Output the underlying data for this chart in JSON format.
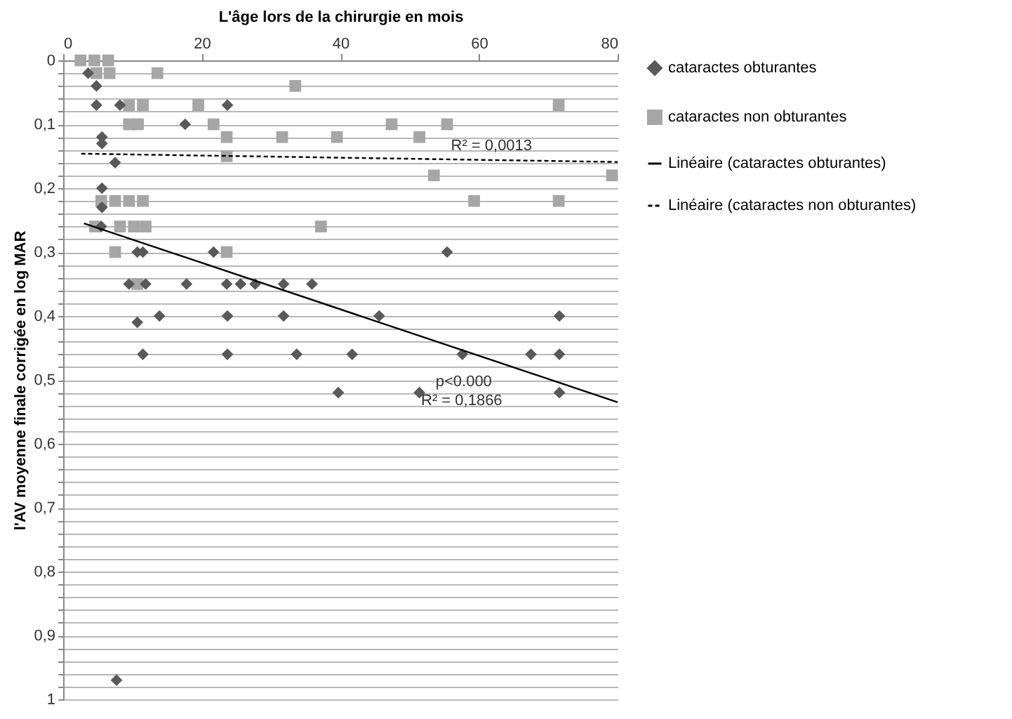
{
  "chart_data": {
    "type": "scatter",
    "xlabel": "L'âge lors de la chirurgie en mois",
    "ylabel": "l'AV moyenne finale corrigée en log MAR",
    "xlim": [
      0,
      80
    ],
    "xticks": [
      0,
      20,
      40,
      60,
      80
    ],
    "ylim": [
      1,
      0
    ],
    "yticks": [
      0,
      {
        "value": 0.02,
        "label": null
      },
      {
        "value": 0.04,
        "label": null
      },
      {
        "value": 0.06,
        "label": null
      },
      {
        "value": 0.08,
        "label": null
      },
      {
        "value": 0.1,
        "label": "0,1"
      },
      {
        "value": 0.12,
        "label": null
      },
      {
        "value": 0.14,
        "label": null
      },
      {
        "value": 0.16,
        "label": null
      },
      {
        "value": 0.18,
        "label": null
      },
      {
        "value": 0.2,
        "label": "0,2"
      },
      {
        "value": 0.22,
        "label": null
      },
      {
        "value": 0.24,
        "label": null
      },
      {
        "value": 0.26,
        "label": null
      },
      {
        "value": 0.28,
        "label": null
      },
      {
        "value": 0.3,
        "label": "0,3"
      },
      {
        "value": 0.32,
        "label": null
      },
      {
        "value": 0.34,
        "label": null
      },
      {
        "value": 0.36,
        "label": null
      },
      {
        "value": 0.38,
        "label": null
      },
      {
        "value": 0.4,
        "label": "0,4"
      },
      {
        "value": 0.42,
        "label": null
      },
      {
        "value": 0.44,
        "label": null
      },
      {
        "value": 0.46,
        "label": null
      },
      {
        "value": 0.48,
        "label": null
      },
      {
        "value": 0.5,
        "label": "0,5"
      },
      {
        "value": 0.52,
        "label": null
      },
      {
        "value": 0.54,
        "label": null
      },
      {
        "value": 0.56,
        "label": null
      },
      {
        "value": 0.58,
        "label": null
      },
      {
        "value": 0.6,
        "label": "0,6"
      },
      {
        "value": 0.62,
        "label": null
      },
      {
        "value": 0.64,
        "label": null
      },
      {
        "value": 0.66,
        "label": null
      },
      {
        "value": 0.68,
        "label": null
      },
      {
        "value": 0.7,
        "label": "0,7"
      },
      {
        "value": 0.72,
        "label": null
      },
      {
        "value": 0.74,
        "label": null
      },
      {
        "value": 0.76,
        "label": null
      },
      {
        "value": 0.78,
        "label": null
      },
      {
        "value": 0.8,
        "label": "0,8"
      },
      {
        "value": 0.82,
        "label": null
      },
      {
        "value": 0.84,
        "label": null
      },
      {
        "value": 0.86,
        "label": null
      },
      {
        "value": 0.88,
        "label": null
      },
      {
        "value": 0.9,
        "label": "0,9"
      },
      {
        "value": 0.92,
        "label": null
      },
      {
        "value": 0.94,
        "label": null
      },
      {
        "value": 0.96,
        "label": null
      },
      {
        "value": 0.98,
        "label": null
      },
      1
    ],
    "grid": "y",
    "legend": "right",
    "series": [
      {
        "name": "cataractes obturantes",
        "marker": "diamond",
        "color": "#595959",
        "x": [
          3.6,
          4.8,
          4.8,
          8.2,
          23.7,
          17.6,
          5.6,
          5.6,
          7.5,
          5.6,
          5.6,
          5.5,
          10.7,
          11.5,
          21.7,
          55.4,
          9.5,
          11.9,
          17.8,
          23.6,
          25.6,
          27.7,
          31.8,
          35.9,
          13.9,
          23.7,
          31.8,
          45.6,
          71.6,
          10.7,
          11.5,
          23.7,
          33.7,
          41.7,
          57.6,
          67.5,
          71.6,
          39.7,
          51.4,
          71.6,
          7.7
        ],
        "values": [
          0.02,
          0.04,
          0.07,
          0.07,
          0.07,
          0.1,
          0.12,
          0.13,
          0.16,
          0.2,
          0.23,
          0.26,
          0.3,
          0.3,
          0.3,
          0.3,
          0.35,
          0.35,
          0.35,
          0.35,
          0.35,
          0.35,
          0.35,
          0.35,
          0.4,
          0.4,
          0.4,
          0.4,
          0.4,
          0.41,
          0.46,
          0.46,
          0.46,
          0.46,
          0.46,
          0.46,
          0.46,
          0.52,
          0.52,
          0.52,
          0.97
        ]
      },
      {
        "name": "cataractes non obturantes",
        "marker": "square",
        "color": "#a6a6a6",
        "x": [
          2.5,
          4.5,
          6.5,
          4.8,
          6.7,
          13.6,
          33.5,
          9.5,
          11.5,
          19.5,
          71.5,
          9.5,
          10.8,
          21.7,
          47.4,
          55.4,
          23.6,
          31.6,
          39.5,
          51.4,
          23.6,
          53.5,
          79.2,
          5.5,
          7.5,
          9.5,
          11.5,
          59.3,
          71.5,
          4.6,
          8.2,
          10.2,
          11.9,
          37.2,
          7.5,
          23.6,
          10.7
        ],
        "values": [
          0,
          0,
          0,
          0.02,
          0.02,
          0.02,
          0.04,
          0.07,
          0.07,
          0.07,
          0.07,
          0.1,
          0.1,
          0.1,
          0.1,
          0.1,
          0.12,
          0.12,
          0.12,
          0.12,
          0.15,
          0.18,
          0.18,
          0.22,
          0.22,
          0.22,
          0.22,
          0.22,
          0.22,
          0.26,
          0.26,
          0.26,
          0.26,
          0.26,
          0.3,
          0.3,
          0.35
        ]
      },
      {
        "name": "Linéaire (cataractes obturantes)",
        "type": "line",
        "line_style": "solid",
        "color": "#000000",
        "x": [
          3,
          80
        ],
        "values": [
          0.255,
          0.535
        ]
      },
      {
        "name": "Linéaire (cataractes non obturantes)",
        "type": "line",
        "line_style": "dashed",
        "color": "#000000",
        "x": [
          2.6,
          80
        ],
        "values": [
          0.146,
          0.159
        ]
      }
    ],
    "annotations": [
      {
        "text": "R² = 0,0013",
        "x": 61.8,
        "y": 0.156
      },
      {
        "text": "p<0.000",
        "x": 57.8,
        "y": 0.455
      },
      {
        "text": "R² = 0,1866",
        "x": 57.5,
        "y": 0.454
      }
    ]
  }
}
